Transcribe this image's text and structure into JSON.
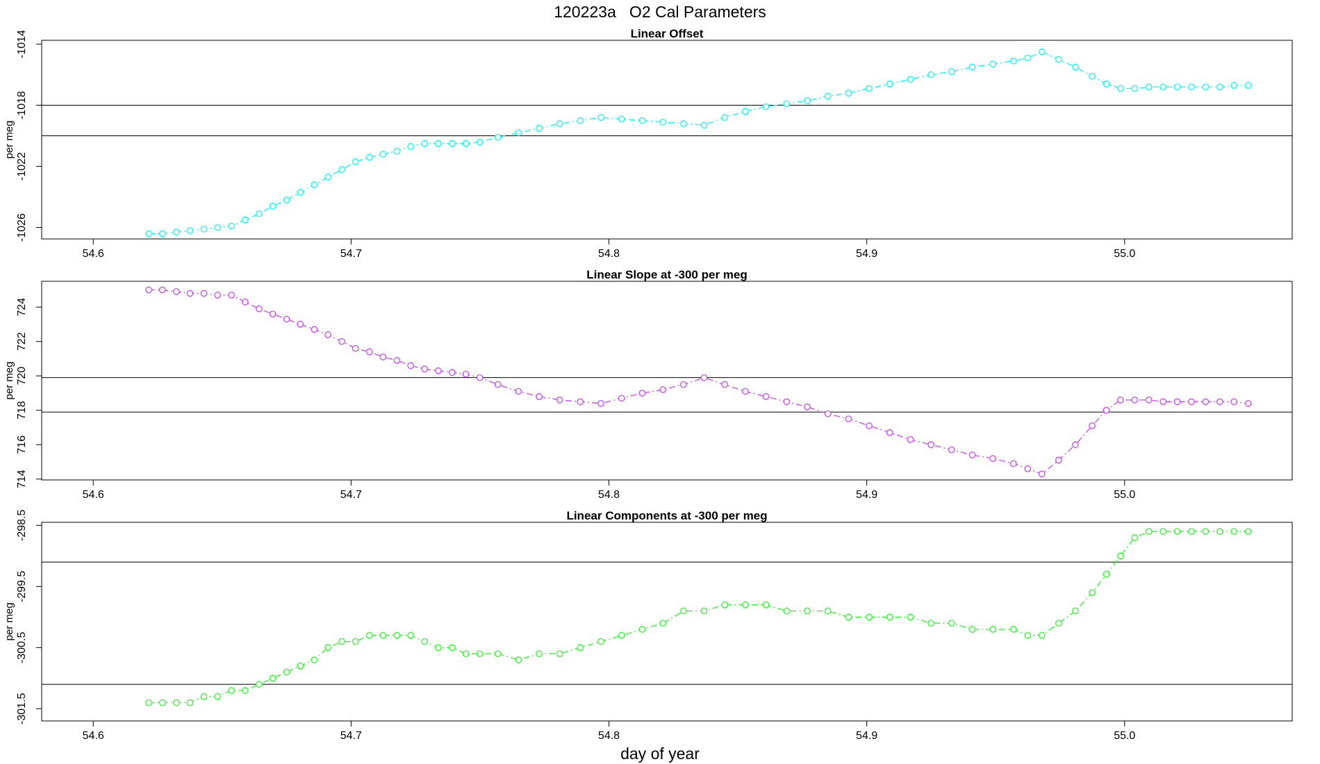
{
  "title": "120223a   O2 Cal Parameters",
  "xlabel": "day of year",
  "chart_data": [
    {
      "type": "line",
      "title": "Linear Offset",
      "ylabel": "per meg",
      "color": "#00ffff",
      "xlim": [
        54.58,
        55.065
      ],
      "ylim": [
        -1026.75,
        -1013.75
      ],
      "xticks": [
        "54.6",
        "54.7",
        "54.8",
        "54.9",
        "55.0"
      ],
      "xtick_values": [
        54.6,
        54.7,
        54.8,
        54.9,
        55.0
      ],
      "yticks": [
        "-1026",
        "-1022",
        "-1018",
        "-1014"
      ],
      "ytick_values": [
        -1026,
        -1022,
        -1018,
        -1014
      ],
      "hlines": [
        -1018,
        -1020
      ],
      "grid": false,
      "x": [
        54.6215,
        54.6268,
        54.6322,
        54.6375,
        54.6429,
        54.6482,
        54.6536,
        54.6589,
        54.6643,
        54.6696,
        54.675,
        54.6803,
        54.6857,
        54.691,
        54.6964,
        54.7017,
        54.7071,
        54.7124,
        54.7178,
        54.7231,
        54.7285,
        54.7338,
        54.7392,
        54.7445,
        54.7499,
        54.7569,
        54.7649,
        54.7729,
        54.7809,
        54.7889,
        54.7969,
        54.8049,
        54.8129,
        54.8209,
        54.8289,
        54.8369,
        54.8449,
        54.8529,
        54.8609,
        54.8689,
        54.8769,
        54.8849,
        54.8929,
        54.9009,
        54.9089,
        54.9169,
        54.9249,
        54.9329,
        54.9409,
        54.9489,
        54.9569,
        54.9624,
        54.9679,
        54.9744,
        54.9809,
        54.9874,
        54.9929,
        54.9984,
        55.0039,
        55.0094,
        55.0149,
        55.0204,
        55.0259,
        55.0314,
        55.0369,
        55.0424,
        55.0479
      ],
      "y": [
        -1026.4,
        -1026.4,
        -1026.3,
        -1026.2,
        -1026.1,
        -1026.0,
        -1025.9,
        -1025.5,
        -1025.1,
        -1024.6,
        -1024.2,
        -1023.7,
        -1023.2,
        -1022.7,
        -1022.2,
        -1021.7,
        -1021.4,
        -1021.2,
        -1021.0,
        -1020.7,
        -1020.5,
        -1020.5,
        -1020.5,
        -1020.5,
        -1020.4,
        -1020.1,
        -1019.8,
        -1019.5,
        -1019.2,
        -1019.0,
        -1018.8,
        -1018.9,
        -1019.0,
        -1019.1,
        -1019.2,
        -1019.3,
        -1018.8,
        -1018.4,
        -1018.1,
        -1017.9,
        -1017.7,
        -1017.4,
        -1017.2,
        -1016.9,
        -1016.6,
        -1016.3,
        -1016.0,
        -1015.8,
        -1015.5,
        -1015.3,
        -1015.1,
        -1014.9,
        -1014.5,
        -1015.0,
        -1015.5,
        -1016.1,
        -1016.6,
        -1016.9,
        -1016.9,
        -1016.8,
        -1016.8,
        -1016.8,
        -1016.8,
        -1016.8,
        -1016.8,
        -1016.7,
        -1016.7
      ]
    },
    {
      "type": "line",
      "title": "Linear Slope at -300 per meg",
      "ylabel": "per meg",
      "color": "#cc44ff",
      "xlim": [
        54.58,
        55.065
      ],
      "ylim": [
        713.95,
        725.5
      ],
      "xticks": [
        "54.6",
        "54.7",
        "54.8",
        "54.9",
        "55.0"
      ],
      "xtick_values": [
        54.6,
        54.7,
        54.8,
        54.9,
        55.0
      ],
      "yticks": [
        "714",
        "716",
        "718",
        "720",
        "722",
        "724"
      ],
      "ytick_values": [
        714,
        716,
        718,
        720,
        722,
        724
      ],
      "hlines": [
        719.9,
        717.9
      ],
      "grid": false,
      "x": [
        54.6215,
        54.6268,
        54.6322,
        54.6375,
        54.6429,
        54.6482,
        54.6536,
        54.6589,
        54.6643,
        54.6696,
        54.675,
        54.6803,
        54.6857,
        54.691,
        54.6964,
        54.7017,
        54.7071,
        54.7124,
        54.7178,
        54.7231,
        54.7285,
        54.7338,
        54.7392,
        54.7445,
        54.7499,
        54.7569,
        54.7649,
        54.7729,
        54.7809,
        54.7889,
        54.7969,
        54.8049,
        54.8129,
        54.8209,
        54.8289,
        54.8369,
        54.8449,
        54.8529,
        54.8609,
        54.8689,
        54.8769,
        54.8849,
        54.8929,
        54.9009,
        54.9089,
        54.9169,
        54.9249,
        54.9329,
        54.9409,
        54.9489,
        54.9569,
        54.9624,
        54.9679,
        54.9744,
        54.9809,
        54.9874,
        54.9929,
        54.9984,
        55.0039,
        55.0094,
        55.0149,
        55.0204,
        55.0259,
        55.0314,
        55.0369,
        55.0424,
        55.0479
      ],
      "y": [
        725.0,
        725.0,
        724.9,
        724.8,
        724.8,
        724.7,
        724.7,
        724.3,
        723.9,
        723.6,
        723.3,
        723.0,
        722.7,
        722.4,
        722.0,
        721.6,
        721.4,
        721.1,
        720.9,
        720.6,
        720.4,
        720.3,
        720.2,
        720.1,
        719.9,
        719.5,
        719.1,
        718.8,
        718.6,
        718.5,
        718.4,
        718.7,
        719.0,
        719.2,
        719.5,
        719.9,
        719.5,
        719.1,
        718.8,
        718.5,
        718.2,
        717.8,
        717.5,
        717.1,
        716.7,
        716.3,
        716.0,
        715.7,
        715.4,
        715.2,
        714.9,
        714.6,
        714.3,
        715.1,
        716.0,
        717.1,
        718.0,
        718.6,
        718.6,
        718.6,
        718.5,
        718.5,
        718.5,
        718.5,
        718.5,
        718.5,
        718.4
      ]
    },
    {
      "type": "line",
      "title": "Linear Components at -300 per meg",
      "ylabel": "per meg",
      "color": "#22ff22",
      "xlim": [
        54.58,
        55.065
      ],
      "ylim": [
        -301.7,
        -298.45
      ],
      "xticks": [
        "54.6",
        "54.7",
        "54.8",
        "54.9",
        "55.0"
      ],
      "xtick_values": [
        54.6,
        54.7,
        54.8,
        54.9,
        55.0
      ],
      "yticks": [
        "-301.5",
        "-300.5",
        "-299.5",
        "-298.5"
      ],
      "ytick_values": [
        -301.5,
        -300.5,
        -299.5,
        -298.5
      ],
      "hlines": [
        -299.1,
        -301.1
      ],
      "grid": false,
      "x": [
        54.6215,
        54.6268,
        54.6322,
        54.6375,
        54.6429,
        54.6482,
        54.6536,
        54.6589,
        54.6643,
        54.6696,
        54.675,
        54.6803,
        54.6857,
        54.691,
        54.6964,
        54.7017,
        54.7071,
        54.7124,
        54.7178,
        54.7231,
        54.7285,
        54.7338,
        54.7392,
        54.7445,
        54.7499,
        54.7569,
        54.7649,
        54.7729,
        54.7809,
        54.7889,
        54.7969,
        54.8049,
        54.8129,
        54.8209,
        54.8289,
        54.8369,
        54.8449,
        54.8529,
        54.8609,
        54.8689,
        54.8769,
        54.8849,
        54.8929,
        54.9009,
        54.9089,
        54.9169,
        54.9249,
        54.9329,
        54.9409,
        54.9489,
        54.9569,
        54.9624,
        54.9679,
        54.9744,
        54.9809,
        54.9874,
        54.9929,
        54.9984,
        55.0039,
        55.0094,
        55.0149,
        55.0204,
        55.0259,
        55.0314,
        55.0369,
        55.0424,
        55.0479
      ],
      "y": [
        -301.4,
        -301.4,
        -301.4,
        -301.4,
        -301.3,
        -301.3,
        -301.2,
        -301.2,
        -301.1,
        -301.0,
        -300.9,
        -300.8,
        -300.7,
        -300.5,
        -300.4,
        -300.4,
        -300.3,
        -300.3,
        -300.3,
        -300.3,
        -300.4,
        -300.5,
        -300.5,
        -300.6,
        -300.6,
        -300.6,
        -300.7,
        -300.6,
        -300.6,
        -300.5,
        -300.4,
        -300.3,
        -300.2,
        -300.1,
        -299.9,
        -299.9,
        -299.8,
        -299.8,
        -299.8,
        -299.9,
        -299.9,
        -299.9,
        -300.0,
        -300.0,
        -300.0,
        -300.0,
        -300.1,
        -300.1,
        -300.2,
        -300.2,
        -300.2,
        -300.3,
        -300.3,
        -300.1,
        -299.9,
        -299.6,
        -299.3,
        -299.0,
        -298.7,
        -298.6,
        -298.6,
        -298.6,
        -298.6,
        -298.6,
        -298.6,
        -298.6,
        -298.6
      ]
    }
  ]
}
